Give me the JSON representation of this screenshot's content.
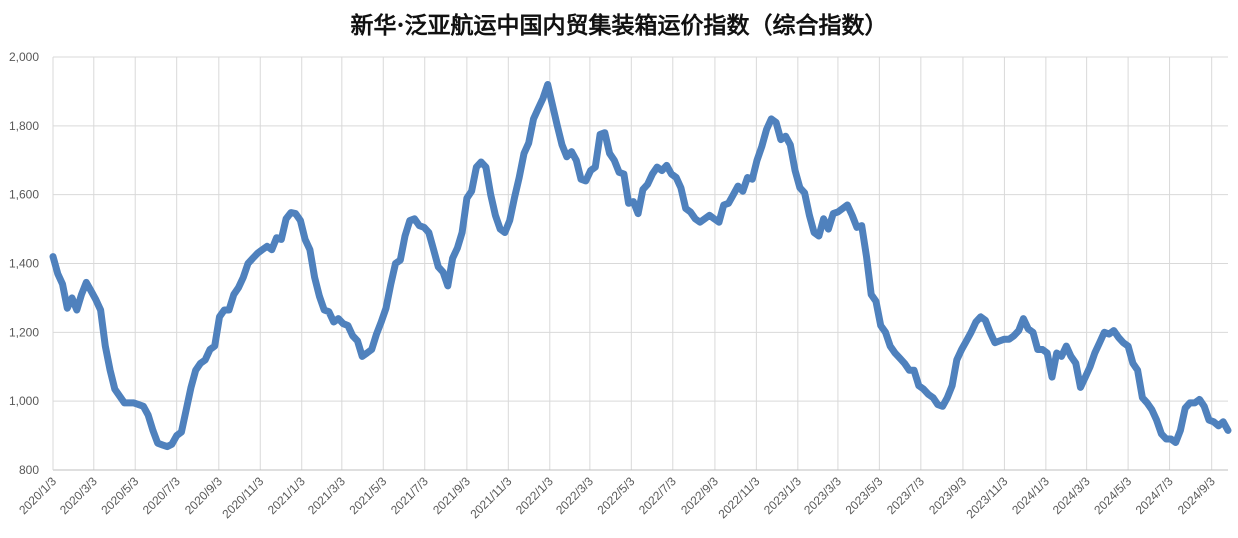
{
  "chart_data": {
    "type": "line",
    "title": "新华·泛亚航运中国内贸集装箱运价指数（综合指数）",
    "xlabel": "",
    "ylabel": "",
    "ylim": [
      800,
      2000
    ],
    "y_ticks": [
      "800",
      "1,000",
      "1,200",
      "1,400",
      "1,600",
      "1,800",
      "2,000"
    ],
    "y_tick_values": [
      800,
      1000,
      1200,
      1400,
      1600,
      1800,
      2000
    ],
    "x_range": [
      "2020-01-03",
      "2024-09-27"
    ],
    "x_ticks": [
      "2020/1/3",
      "2020/3/3",
      "2020/5/3",
      "2020/7/3",
      "2020/9/3",
      "2020/11/3",
      "2021/1/3",
      "2021/3/3",
      "2021/5/3",
      "2021/7/3",
      "2021/9/3",
      "2021/11/3",
      "2022/1/3",
      "2022/3/3",
      "2022/5/3",
      "2022/7/3",
      "2022/9/3",
      "2022/11/3",
      "2023/1/3",
      "2023/3/3",
      "2023/5/3",
      "2023/7/3",
      "2023/9/3",
      "2023/11/3",
      "2024/1/3",
      "2024/3/3",
      "2024/5/3",
      "2024/7/3",
      "2024/9/3"
    ],
    "x_tick_dates": [
      "2020-01-03",
      "2020-03-03",
      "2020-05-03",
      "2020-07-03",
      "2020-09-03",
      "2020-11-03",
      "2021-01-03",
      "2021-03-03",
      "2021-05-03",
      "2021-07-03",
      "2021-09-03",
      "2021-11-03",
      "2022-01-03",
      "2022-03-03",
      "2022-05-03",
      "2022-07-03",
      "2022-09-03",
      "2022-11-03",
      "2023-01-03",
      "2023-03-03",
      "2023-05-03",
      "2023-07-03",
      "2023-09-03",
      "2023-11-03",
      "2024-01-03",
      "2024-03-03",
      "2024-05-03",
      "2024-07-03",
      "2024-09-03"
    ],
    "grid": true,
    "legend": "none",
    "line_color": "#4f81bd",
    "series": [
      {
        "points": [
          [
            "2020-01-03",
            1420
          ],
          [
            "2020-01-10",
            1370
          ],
          [
            "2020-01-17",
            1340
          ],
          [
            "2020-01-24",
            1270
          ],
          [
            "2020-01-31",
            1300
          ],
          [
            "2020-02-07",
            1265
          ],
          [
            "2020-02-14",
            1310
          ],
          [
            "2020-02-21",
            1345
          ],
          [
            "2020-02-28",
            1320
          ],
          [
            "2020-03-06",
            1295
          ],
          [
            "2020-03-13",
            1265
          ],
          [
            "2020-03-20",
            1160
          ],
          [
            "2020-03-27",
            1090
          ],
          [
            "2020-04-03",
            1035
          ],
          [
            "2020-04-10",
            1015
          ],
          [
            "2020-04-17",
            995
          ],
          [
            "2020-04-24",
            995
          ],
          [
            "2020-05-01",
            995
          ],
          [
            "2020-05-08",
            990
          ],
          [
            "2020-05-15",
            985
          ],
          [
            "2020-05-22",
            960
          ],
          [
            "2020-05-29",
            915
          ],
          [
            "2020-06-05",
            878
          ],
          [
            "2020-06-12",
            873
          ],
          [
            "2020-06-19",
            868
          ],
          [
            "2020-06-26",
            875
          ],
          [
            "2020-07-03",
            900
          ],
          [
            "2020-07-10",
            910
          ],
          [
            "2020-07-17",
            975
          ],
          [
            "2020-07-24",
            1040
          ],
          [
            "2020-07-31",
            1090
          ],
          [
            "2020-08-07",
            1110
          ],
          [
            "2020-08-14",
            1120
          ],
          [
            "2020-08-21",
            1150
          ],
          [
            "2020-08-28",
            1160
          ],
          [
            "2020-09-04",
            1245
          ],
          [
            "2020-09-11",
            1265
          ],
          [
            "2020-09-18",
            1265
          ],
          [
            "2020-09-25",
            1310
          ],
          [
            "2020-10-02",
            1330
          ],
          [
            "2020-10-09",
            1360
          ],
          [
            "2020-10-16",
            1400
          ],
          [
            "2020-10-23",
            1415
          ],
          [
            "2020-10-30",
            1430
          ],
          [
            "2020-11-06",
            1440
          ],
          [
            "2020-11-13",
            1450
          ],
          [
            "2020-11-20",
            1440
          ],
          [
            "2020-11-27",
            1475
          ],
          [
            "2020-12-04",
            1470
          ],
          [
            "2020-12-11",
            1530
          ],
          [
            "2020-12-18",
            1548
          ],
          [
            "2020-12-25",
            1545
          ],
          [
            "2021-01-01",
            1525
          ],
          [
            "2021-01-08",
            1470
          ],
          [
            "2021-01-15",
            1440
          ],
          [
            "2021-01-22",
            1360
          ],
          [
            "2021-01-29",
            1305
          ],
          [
            "2021-02-05",
            1265
          ],
          [
            "2021-02-12",
            1260
          ],
          [
            "2021-02-19",
            1230
          ],
          [
            "2021-02-26",
            1240
          ],
          [
            "2021-03-05",
            1225
          ],
          [
            "2021-03-12",
            1220
          ],
          [
            "2021-03-19",
            1190
          ],
          [
            "2021-03-26",
            1175
          ],
          [
            "2021-04-02",
            1130
          ],
          [
            "2021-04-09",
            1140
          ],
          [
            "2021-04-16",
            1150
          ],
          [
            "2021-04-23",
            1195
          ],
          [
            "2021-04-30",
            1230
          ],
          [
            "2021-05-07",
            1270
          ],
          [
            "2021-05-14",
            1340
          ],
          [
            "2021-05-21",
            1400
          ],
          [
            "2021-05-28",
            1410
          ],
          [
            "2021-06-04",
            1480
          ],
          [
            "2021-06-11",
            1525
          ],
          [
            "2021-06-18",
            1530
          ],
          [
            "2021-06-25",
            1510
          ],
          [
            "2021-07-02",
            1505
          ],
          [
            "2021-07-09",
            1490
          ],
          [
            "2021-07-16",
            1440
          ],
          [
            "2021-07-23",
            1390
          ],
          [
            "2021-07-30",
            1375
          ],
          [
            "2021-08-06",
            1335
          ],
          [
            "2021-08-13",
            1415
          ],
          [
            "2021-08-20",
            1445
          ],
          [
            "2021-08-27",
            1490
          ],
          [
            "2021-09-03",
            1590
          ],
          [
            "2021-09-10",
            1610
          ],
          [
            "2021-09-17",
            1680
          ],
          [
            "2021-09-24",
            1695
          ],
          [
            "2021-10-01",
            1680
          ],
          [
            "2021-10-08",
            1600
          ],
          [
            "2021-10-15",
            1540
          ],
          [
            "2021-10-22",
            1500
          ],
          [
            "2021-10-29",
            1490
          ],
          [
            "2021-11-05",
            1525
          ],
          [
            "2021-11-12",
            1590
          ],
          [
            "2021-11-19",
            1650
          ],
          [
            "2021-11-26",
            1720
          ],
          [
            "2021-12-03",
            1750
          ],
          [
            "2021-12-10",
            1820
          ],
          [
            "2021-12-17",
            1850
          ],
          [
            "2021-12-24",
            1880
          ],
          [
            "2021-12-31",
            1920
          ],
          [
            "2022-01-07",
            1860
          ],
          [
            "2022-01-14",
            1800
          ],
          [
            "2022-01-21",
            1745
          ],
          [
            "2022-01-28",
            1710
          ],
          [
            "2022-02-04",
            1725
          ],
          [
            "2022-02-11",
            1700
          ],
          [
            "2022-02-18",
            1645
          ],
          [
            "2022-02-25",
            1640
          ],
          [
            "2022-03-04",
            1670
          ],
          [
            "2022-03-11",
            1680
          ],
          [
            "2022-03-18",
            1775
          ],
          [
            "2022-03-25",
            1780
          ],
          [
            "2022-04-01",
            1720
          ],
          [
            "2022-04-08",
            1700
          ],
          [
            "2022-04-15",
            1665
          ],
          [
            "2022-04-22",
            1660
          ],
          [
            "2022-04-29",
            1575
          ],
          [
            "2022-05-06",
            1580
          ],
          [
            "2022-05-13",
            1545
          ],
          [
            "2022-05-20",
            1615
          ],
          [
            "2022-05-27",
            1630
          ],
          [
            "2022-06-03",
            1660
          ],
          [
            "2022-06-10",
            1680
          ],
          [
            "2022-06-17",
            1670
          ],
          [
            "2022-06-24",
            1685
          ],
          [
            "2022-07-01",
            1660
          ],
          [
            "2022-07-08",
            1650
          ],
          [
            "2022-07-15",
            1620
          ],
          [
            "2022-07-22",
            1560
          ],
          [
            "2022-07-29",
            1550
          ],
          [
            "2022-08-05",
            1530
          ],
          [
            "2022-08-12",
            1520
          ],
          [
            "2022-08-19",
            1530
          ],
          [
            "2022-08-26",
            1540
          ],
          [
            "2022-09-02",
            1530
          ],
          [
            "2022-09-09",
            1520
          ],
          [
            "2022-09-16",
            1570
          ],
          [
            "2022-09-23",
            1575
          ],
          [
            "2022-09-30",
            1600
          ],
          [
            "2022-10-07",
            1625
          ],
          [
            "2022-10-14",
            1610
          ],
          [
            "2022-10-21",
            1650
          ],
          [
            "2022-10-28",
            1645
          ],
          [
            "2022-11-04",
            1700
          ],
          [
            "2022-11-11",
            1740
          ],
          [
            "2022-11-18",
            1790
          ],
          [
            "2022-11-25",
            1820
          ],
          [
            "2022-12-02",
            1810
          ],
          [
            "2022-12-09",
            1760
          ],
          [
            "2022-12-16",
            1770
          ],
          [
            "2022-12-23",
            1745
          ],
          [
            "2022-12-30",
            1670
          ],
          [
            "2023-01-06",
            1620
          ],
          [
            "2023-01-13",
            1605
          ],
          [
            "2023-01-20",
            1540
          ],
          [
            "2023-01-27",
            1490
          ],
          [
            "2023-02-03",
            1480
          ],
          [
            "2023-02-10",
            1530
          ],
          [
            "2023-02-17",
            1500
          ],
          [
            "2023-02-24",
            1545
          ],
          [
            "2023-03-03",
            1550
          ],
          [
            "2023-03-10",
            1560
          ],
          [
            "2023-03-17",
            1570
          ],
          [
            "2023-03-24",
            1540
          ],
          [
            "2023-03-31",
            1505
          ],
          [
            "2023-04-07",
            1510
          ],
          [
            "2023-04-14",
            1420
          ],
          [
            "2023-04-21",
            1310
          ],
          [
            "2023-04-28",
            1290
          ],
          [
            "2023-05-05",
            1220
          ],
          [
            "2023-05-12",
            1200
          ],
          [
            "2023-05-19",
            1160
          ],
          [
            "2023-05-26",
            1140
          ],
          [
            "2023-06-02",
            1125
          ],
          [
            "2023-06-09",
            1110
          ],
          [
            "2023-06-16",
            1090
          ],
          [
            "2023-06-23",
            1090
          ],
          [
            "2023-06-30",
            1045
          ],
          [
            "2023-07-07",
            1035
          ],
          [
            "2023-07-14",
            1020
          ],
          [
            "2023-07-21",
            1010
          ],
          [
            "2023-07-28",
            990
          ],
          [
            "2023-08-04",
            985
          ],
          [
            "2023-08-11",
            1010
          ],
          [
            "2023-08-18",
            1045
          ],
          [
            "2023-08-25",
            1120
          ],
          [
            "2023-09-01",
            1150
          ],
          [
            "2023-09-08",
            1175
          ],
          [
            "2023-09-15",
            1200
          ],
          [
            "2023-09-22",
            1230
          ],
          [
            "2023-09-29",
            1245
          ],
          [
            "2023-10-06",
            1235
          ],
          [
            "2023-10-13",
            1200
          ],
          [
            "2023-10-20",
            1170
          ],
          [
            "2023-10-27",
            1175
          ],
          [
            "2023-11-03",
            1180
          ],
          [
            "2023-11-10",
            1180
          ],
          [
            "2023-11-17",
            1190
          ],
          [
            "2023-11-24",
            1205
          ],
          [
            "2023-12-01",
            1240
          ],
          [
            "2023-12-08",
            1210
          ],
          [
            "2023-12-15",
            1200
          ],
          [
            "2023-12-22",
            1150
          ],
          [
            "2023-12-29",
            1150
          ],
          [
            "2024-01-05",
            1140
          ],
          [
            "2024-01-12",
            1070
          ],
          [
            "2024-01-19",
            1140
          ],
          [
            "2024-01-26",
            1130
          ],
          [
            "2024-02-02",
            1160
          ],
          [
            "2024-02-09",
            1130
          ],
          [
            "2024-02-16",
            1110
          ],
          [
            "2024-02-23",
            1040
          ],
          [
            "2024-03-01",
            1070
          ],
          [
            "2024-03-08",
            1100
          ],
          [
            "2024-03-15",
            1140
          ],
          [
            "2024-03-22",
            1170
          ],
          [
            "2024-03-29",
            1200
          ],
          [
            "2024-04-05",
            1195
          ],
          [
            "2024-04-12",
            1205
          ],
          [
            "2024-04-19",
            1185
          ],
          [
            "2024-04-26",
            1170
          ],
          [
            "2024-05-03",
            1160
          ],
          [
            "2024-05-10",
            1110
          ],
          [
            "2024-05-17",
            1090
          ],
          [
            "2024-05-24",
            1010
          ],
          [
            "2024-05-31",
            995
          ],
          [
            "2024-06-07",
            975
          ],
          [
            "2024-06-14",
            945
          ],
          [
            "2024-06-21",
            905
          ],
          [
            "2024-06-28",
            890
          ],
          [
            "2024-07-05",
            890
          ],
          [
            "2024-07-12",
            880
          ],
          [
            "2024-07-19",
            915
          ],
          [
            "2024-07-26",
            980
          ],
          [
            "2024-08-02",
            995
          ],
          [
            "2024-08-09",
            995
          ],
          [
            "2024-08-16",
            1005
          ],
          [
            "2024-08-23",
            985
          ],
          [
            "2024-08-30",
            945
          ],
          [
            "2024-09-06",
            940
          ],
          [
            "2024-09-13",
            928
          ],
          [
            "2024-09-20",
            940
          ],
          [
            "2024-09-27",
            915
          ]
        ]
      }
    ]
  }
}
